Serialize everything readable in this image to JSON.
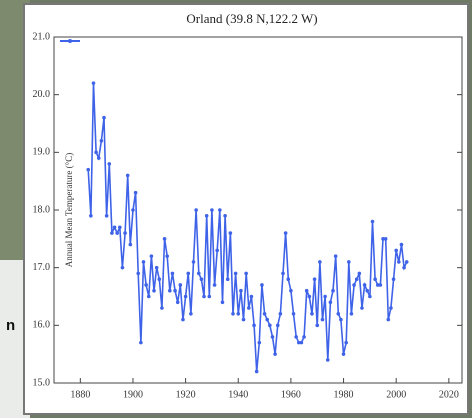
{
  "background_text": "n",
  "chart_data": {
    "type": "line",
    "title": "Orland (39.8 N,122.2 W)",
    "ylabel": "Annual Mean Temperature (°C)",
    "x": [
      1883,
      1884,
      1885,
      1886,
      1887,
      1888,
      1889,
      1890,
      1891,
      1892,
      1893,
      1894,
      1895,
      1896,
      1897,
      1898,
      1899,
      1900,
      1901,
      1902,
      1903,
      1904,
      1905,
      1906,
      1907,
      1908,
      1909,
      1910,
      1911,
      1912,
      1913,
      1914,
      1915,
      1916,
      1917,
      1918,
      1919,
      1920,
      1921,
      1922,
      1923,
      1924,
      1925,
      1926,
      1927,
      1928,
      1929,
      1930,
      1931,
      1932,
      1933,
      1934,
      1935,
      1936,
      1937,
      1938,
      1939,
      1940,
      1941,
      1942,
      1943,
      1944,
      1945,
      1946,
      1947,
      1948,
      1949,
      1950,
      1951,
      1952,
      1953,
      1954,
      1955,
      1956,
      1957,
      1958,
      1959,
      1960,
      1961,
      1962,
      1963,
      1964,
      1965,
      1966,
      1967,
      1968,
      1969,
      1970,
      1971,
      1972,
      1973,
      1974,
      1975,
      1976,
      1977,
      1978,
      1979,
      1980,
      1981,
      1982,
      1983,
      1984,
      1985,
      1986,
      1987,
      1988,
      1989,
      1990,
      1991,
      1992,
      1993,
      1994,
      1995,
      1996,
      1997,
      1998,
      1999,
      2000,
      2001,
      2002,
      2003,
      2004
    ],
    "values": [
      18.7,
      17.9,
      20.2,
      19.0,
      18.9,
      19.2,
      19.6,
      17.9,
      18.8,
      17.6,
      17.7,
      17.6,
      17.7,
      17.0,
      17.6,
      18.6,
      17.4,
      18.0,
      18.3,
      16.9,
      15.7,
      17.1,
      16.7,
      16.5,
      17.2,
      16.6,
      17.0,
      16.8,
      16.3,
      17.5,
      17.2,
      16.6,
      16.9,
      16.6,
      16.4,
      16.7,
      16.1,
      16.5,
      16.9,
      16.2,
      17.1,
      18.0,
      16.9,
      16.8,
      16.5,
      17.9,
      16.5,
      18.0,
      16.7,
      17.3,
      18.0,
      16.4,
      17.9,
      16.8,
      17.6,
      16.2,
      16.9,
      16.2,
      16.6,
      16.1,
      16.9,
      16.3,
      16.5,
      16.0,
      15.2,
      15.7,
      16.7,
      16.2,
      16.1,
      16.0,
      15.8,
      15.5,
      16.0,
      16.2,
      16.9,
      17.6,
      16.8,
      16.6,
      16.2,
      15.8,
      15.7,
      15.7,
      15.8,
      16.6,
      16.5,
      16.2,
      16.8,
      16.0,
      17.1,
      16.1,
      16.5,
      15.4,
      16.4,
      16.6,
      17.2,
      16.2,
      16.1,
      15.5,
      15.7,
      17.1,
      16.2,
      16.7,
      16.8,
      16.9,
      16.3,
      16.7,
      16.6,
      16.5,
      17.8,
      16.8,
      16.7,
      16.7,
      17.5,
      17.5,
      16.1,
      16.3,
      16.8,
      17.3,
      17.1,
      17.4,
      17.0,
      17.1
    ],
    "color": "#3f63e8",
    "xlim": [
      1870,
      2025
    ],
    "xticks": [
      1880,
      1900,
      1920,
      1940,
      1960,
      1980,
      2000,
      2020
    ],
    "ylim": [
      15,
      21
    ],
    "yticks": [
      {
        "value": 15,
        "label": "15.0"
      },
      {
        "value": 16,
        "label": "16.0"
      },
      {
        "value": 17,
        "label": "17.0"
      },
      {
        "value": 18,
        "label": "18.0"
      },
      {
        "value": 19,
        "label": "19.0"
      },
      {
        "value": 20,
        "label": "20.0"
      },
      {
        "value": 21,
        "label": "21.0"
      }
    ]
  }
}
